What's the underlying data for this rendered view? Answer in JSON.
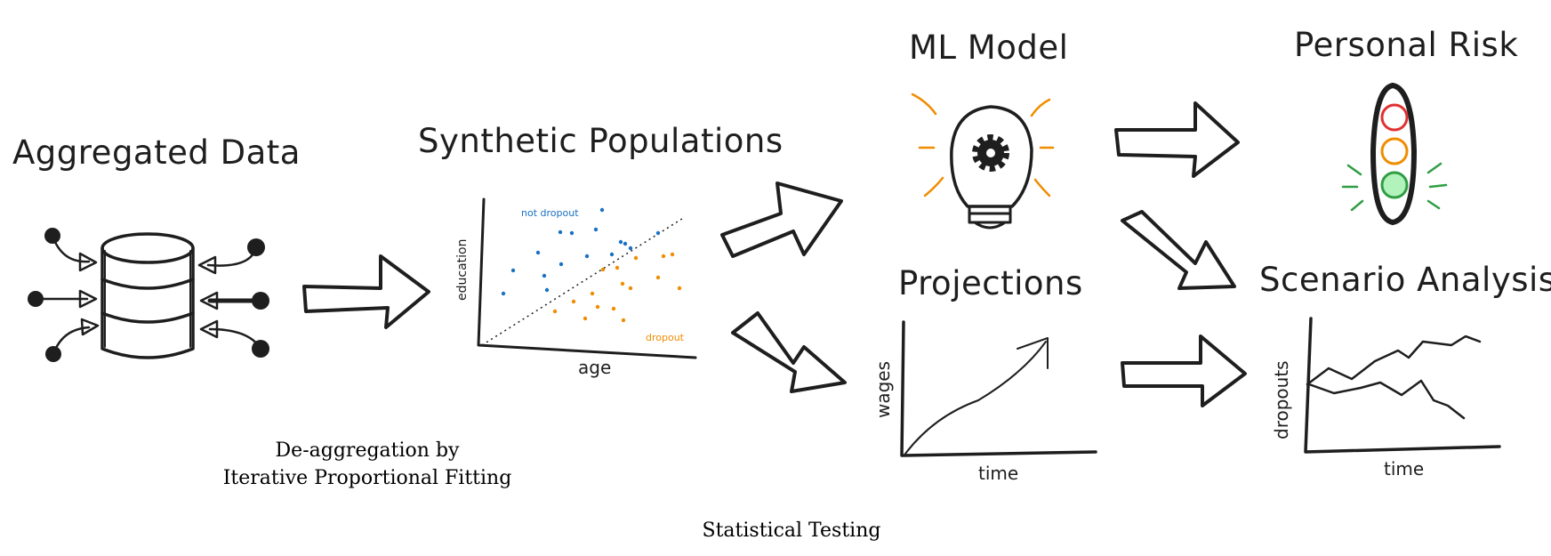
{
  "titles": {
    "aggregated": "Aggregated Data",
    "synthetic": "Synthetic Populations",
    "ml_model": "ML Model",
    "personal_risk": "Personal Risk",
    "projections": "Projections",
    "scenario": "Scenario Analysis"
  },
  "scatter": {
    "x_label": "age",
    "y_label": "education",
    "class_a": "not dropout",
    "class_b": "dropout",
    "color_a": "#1971c2",
    "color_b": "#f08c00"
  },
  "projections_chart": {
    "x_label": "time",
    "y_label": "wages"
  },
  "scenario_chart": {
    "x_label": "time",
    "y_label": "dropouts"
  },
  "captions": {
    "deagg_line1": "De-aggregation by",
    "deagg_line2": "Iterative Proportional Fitting",
    "testing": "Statistical Testing"
  },
  "colors": {
    "ink": "#1e1e1e",
    "accent_orange": "#f08c00",
    "light_red": "#e03131",
    "light_orange": "#f08c00",
    "light_green": "#2f9e44",
    "light_green_fill": "#b2f2bb"
  },
  "icons": [
    "database-icon",
    "lightbulb-gear-icon",
    "traffic-light-icon"
  ]
}
